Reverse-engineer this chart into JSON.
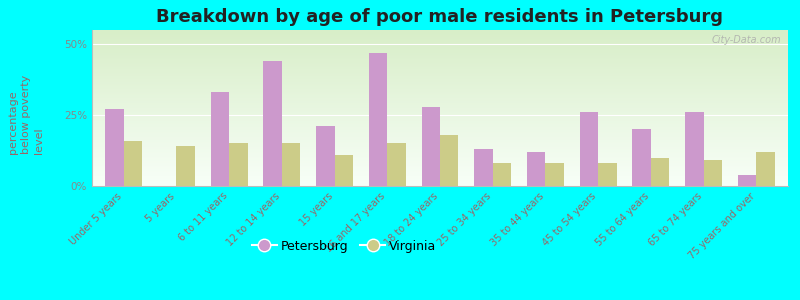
{
  "title": "Breakdown by age of poor male residents in Petersburg",
  "categories": [
    "Under 5 years",
    "5 years",
    "6 to 11 years",
    "12 to 14 years",
    "15 years",
    "16 and 17 years",
    "18 to 24 years",
    "25 to 34 years",
    "35 to 44 years",
    "45 to 54 years",
    "55 to 64 years",
    "65 to 74 years",
    "75 years and over"
  ],
  "petersburg": [
    27,
    0,
    33,
    44,
    21,
    47,
    28,
    13,
    12,
    26,
    20,
    26,
    4
  ],
  "virginia": [
    16,
    14,
    15,
    15,
    11,
    15,
    18,
    8,
    8,
    8,
    10,
    9,
    12
  ],
  "petersburg_color": "#cc99cc",
  "virginia_color": "#cccc88",
  "background_color": "#00ffff",
  "plot_bg_top": "#d8eec8",
  "plot_bg_bottom": "#f8fff8",
  "ylabel": "percentage\nbelow poverty\nlevel",
  "yticks": [
    0,
    25,
    50
  ],
  "ytick_labels": [
    "0%",
    "25%",
    "50%"
  ],
  "ylim": [
    0,
    55
  ],
  "title_fontsize": 13,
  "axis_label_fontsize": 8,
  "tick_fontsize": 7.5,
  "watermark": "City-Data.com"
}
